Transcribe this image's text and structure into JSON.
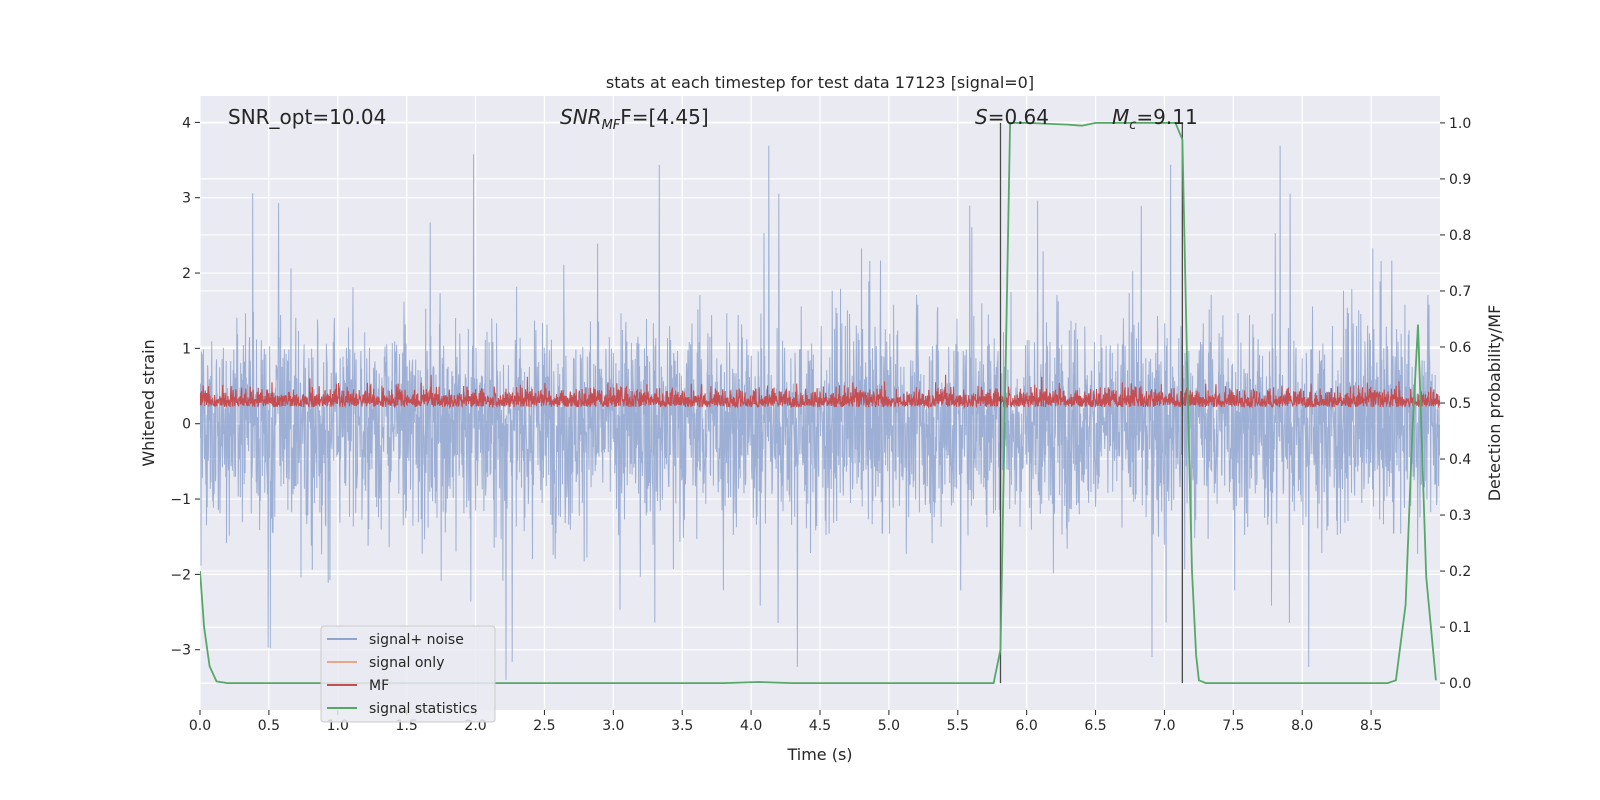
{
  "chart_data": {
    "type": "line",
    "title": "stats at each timestep for test data 17123 [signal=0]",
    "xlabel": "Time (s)",
    "ylabel_left": "Whitened strain",
    "ylabel_right": "Detection probability/MF",
    "xlim": [
      0.0,
      9.0
    ],
    "ylim_left": [
      -3.8,
      4.35
    ],
    "ylim_right": [
      -0.048,
      1.048
    ],
    "x_ticks": [
      "0.0",
      "0.5",
      "1.0",
      "1.5",
      "2.0",
      "2.5",
      "3.0",
      "3.5",
      "4.0",
      "4.5",
      "5.0",
      "5.5",
      "6.0",
      "6.5",
      "7.0",
      "7.5",
      "8.0",
      "8.5"
    ],
    "y_ticks_left": [
      "−3",
      "−2",
      "−1",
      "0",
      "1",
      "2",
      "3",
      "4"
    ],
    "y_ticks_right": [
      "0.0",
      "0.1",
      "0.2",
      "0.3",
      "0.4",
      "0.5",
      "0.6",
      "0.7",
      "0.8",
      "0.9",
      "1.0"
    ],
    "grid": true,
    "legend_position": "lower-left",
    "annotations": {
      "snr_opt": "SNR_opt=10.04",
      "snr_mf_main": "SNR",
      "snr_mf_sub": "MF",
      "snr_mf_rest": "F=[4.45]",
      "s_main": "S",
      "s_rest": "=0.64",
      "mc_main": "M",
      "mc_sub": "c",
      "mc_rest": "=9.11"
    },
    "vertical_markers_x": [
      5.81,
      7.13
    ],
    "series": [
      {
        "name": "signal+ noise",
        "color": "#8fa4cf",
        "style": "noise, approx amplitude range -3.4 to 4.0"
      },
      {
        "name": "signal only",
        "color": "#e8a78a",
        "values": []
      },
      {
        "name": "MF",
        "color": "#c44e52",
        "style": "noise, approx range 0.0 to 0.9 (left axis)"
      },
      {
        "name": "signal statistics",
        "color": "#55a868",
        "axis": "right",
        "x": [
          0.0,
          0.03,
          0.07,
          0.12,
          0.2,
          0.3,
          1.0,
          2.0,
          3.0,
          3.8,
          4.05,
          4.3,
          5.0,
          5.5,
          5.76,
          5.81,
          5.85,
          5.88,
          6.0,
          6.3,
          6.4,
          6.5,
          6.7,
          6.9,
          7.0,
          7.08,
          7.13,
          7.17,
          7.2,
          7.23,
          7.25,
          7.3,
          7.5,
          8.0,
          8.5,
          8.62,
          8.68,
          8.75,
          8.8,
          8.84,
          8.9,
          8.97
        ],
        "values": [
          0.2,
          0.1,
          0.03,
          0.003,
          0.0,
          0.0,
          0.0,
          0.0,
          0.0,
          0.0,
          0.002,
          0.0,
          0.0,
          0.0,
          0.0,
          0.06,
          0.6,
          1.0,
          1.0,
          0.997,
          0.995,
          1.0,
          1.0,
          1.0,
          1.0,
          1.0,
          0.97,
          0.5,
          0.2,
          0.05,
          0.005,
          0.0,
          0.0,
          0.0,
          0.0,
          0.0,
          0.005,
          0.14,
          0.45,
          0.64,
          0.19,
          0.005
        ]
      }
    ]
  }
}
